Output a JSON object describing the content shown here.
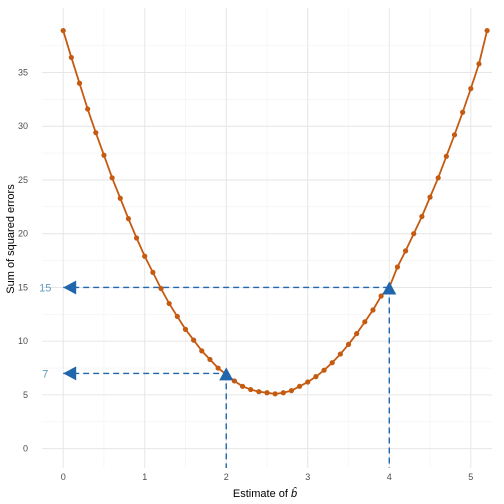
{
  "colors": {
    "curve": "#c55a11",
    "annotation": "#2166ac",
    "annotation_text": "#5e9bc0",
    "grid_major": "#e6e6e6",
    "grid_minor": "#f2f2f2"
  },
  "chart_data": {
    "type": "line",
    "title": "",
    "xlabel": "Estimate of",
    "xlabel_symbol": "b̂",
    "ylabel": "Sum of squared errors",
    "xlim": [
      -0.26,
      5.26
    ],
    "ylim": [
      -1.8,
      41.0
    ],
    "x_ticks": [
      0,
      1,
      2,
      3,
      4,
      5
    ],
    "y_ticks": [
      0,
      5,
      10,
      15,
      20,
      25,
      30,
      35
    ],
    "x_ticks_minor": [
      0.5,
      1.5,
      2.5,
      3.5,
      4.5
    ],
    "y_ticks_minor": [
      2.5,
      7.5,
      12.5,
      17.5,
      22.5,
      27.5,
      32.5,
      37.5
    ],
    "grid": true,
    "series": [
      {
        "x": [
          0,
          0.1,
          0.2,
          0.3,
          0.4,
          0.5,
          0.6,
          0.7,
          0.8,
          0.9,
          1.0,
          1.1,
          1.2,
          1.3,
          1.4,
          1.5,
          1.6,
          1.7,
          1.8,
          1.9,
          2.0,
          2.1,
          2.2,
          2.3,
          2.4,
          2.5,
          2.6,
          2.7,
          2.8,
          2.9,
          3.0,
          3.1,
          3.2,
          3.3,
          3.4,
          3.5,
          3.6,
          3.7,
          3.8,
          3.9,
          4.0,
          4.1,
          4.2,
          4.3,
          4.4,
          4.5,
          4.6,
          4.7,
          4.8,
          4.9,
          5.0,
          5.1,
          5.2
        ],
        "y": [
          38.9,
          36.4,
          34.0,
          31.6,
          29.4,
          27.3,
          25.2,
          23.3,
          21.4,
          19.6,
          17.9,
          16.4,
          14.9,
          13.5,
          12.3,
          11.1,
          10.1,
          9.1,
          8.3,
          7.5,
          6.9,
          6.3,
          5.8,
          5.5,
          5.3,
          5.2,
          5.1,
          5.2,
          5.4,
          5.8,
          6.2,
          6.7,
          7.3,
          8.0,
          8.8,
          9.7,
          10.7,
          11.8,
          12.9,
          14.2,
          15.0,
          16.9,
          18.4,
          20.0,
          21.6,
          23.4,
          25.2,
          27.2,
          29.2,
          31.3,
          33.5,
          35.8,
          38.9
        ]
      }
    ],
    "annotations": [
      {
        "label": "15",
        "x": 4,
        "y": 15,
        "label_x": -0.22
      },
      {
        "label": "7",
        "x": 2,
        "y": 7,
        "label_x": -0.22
      }
    ]
  }
}
